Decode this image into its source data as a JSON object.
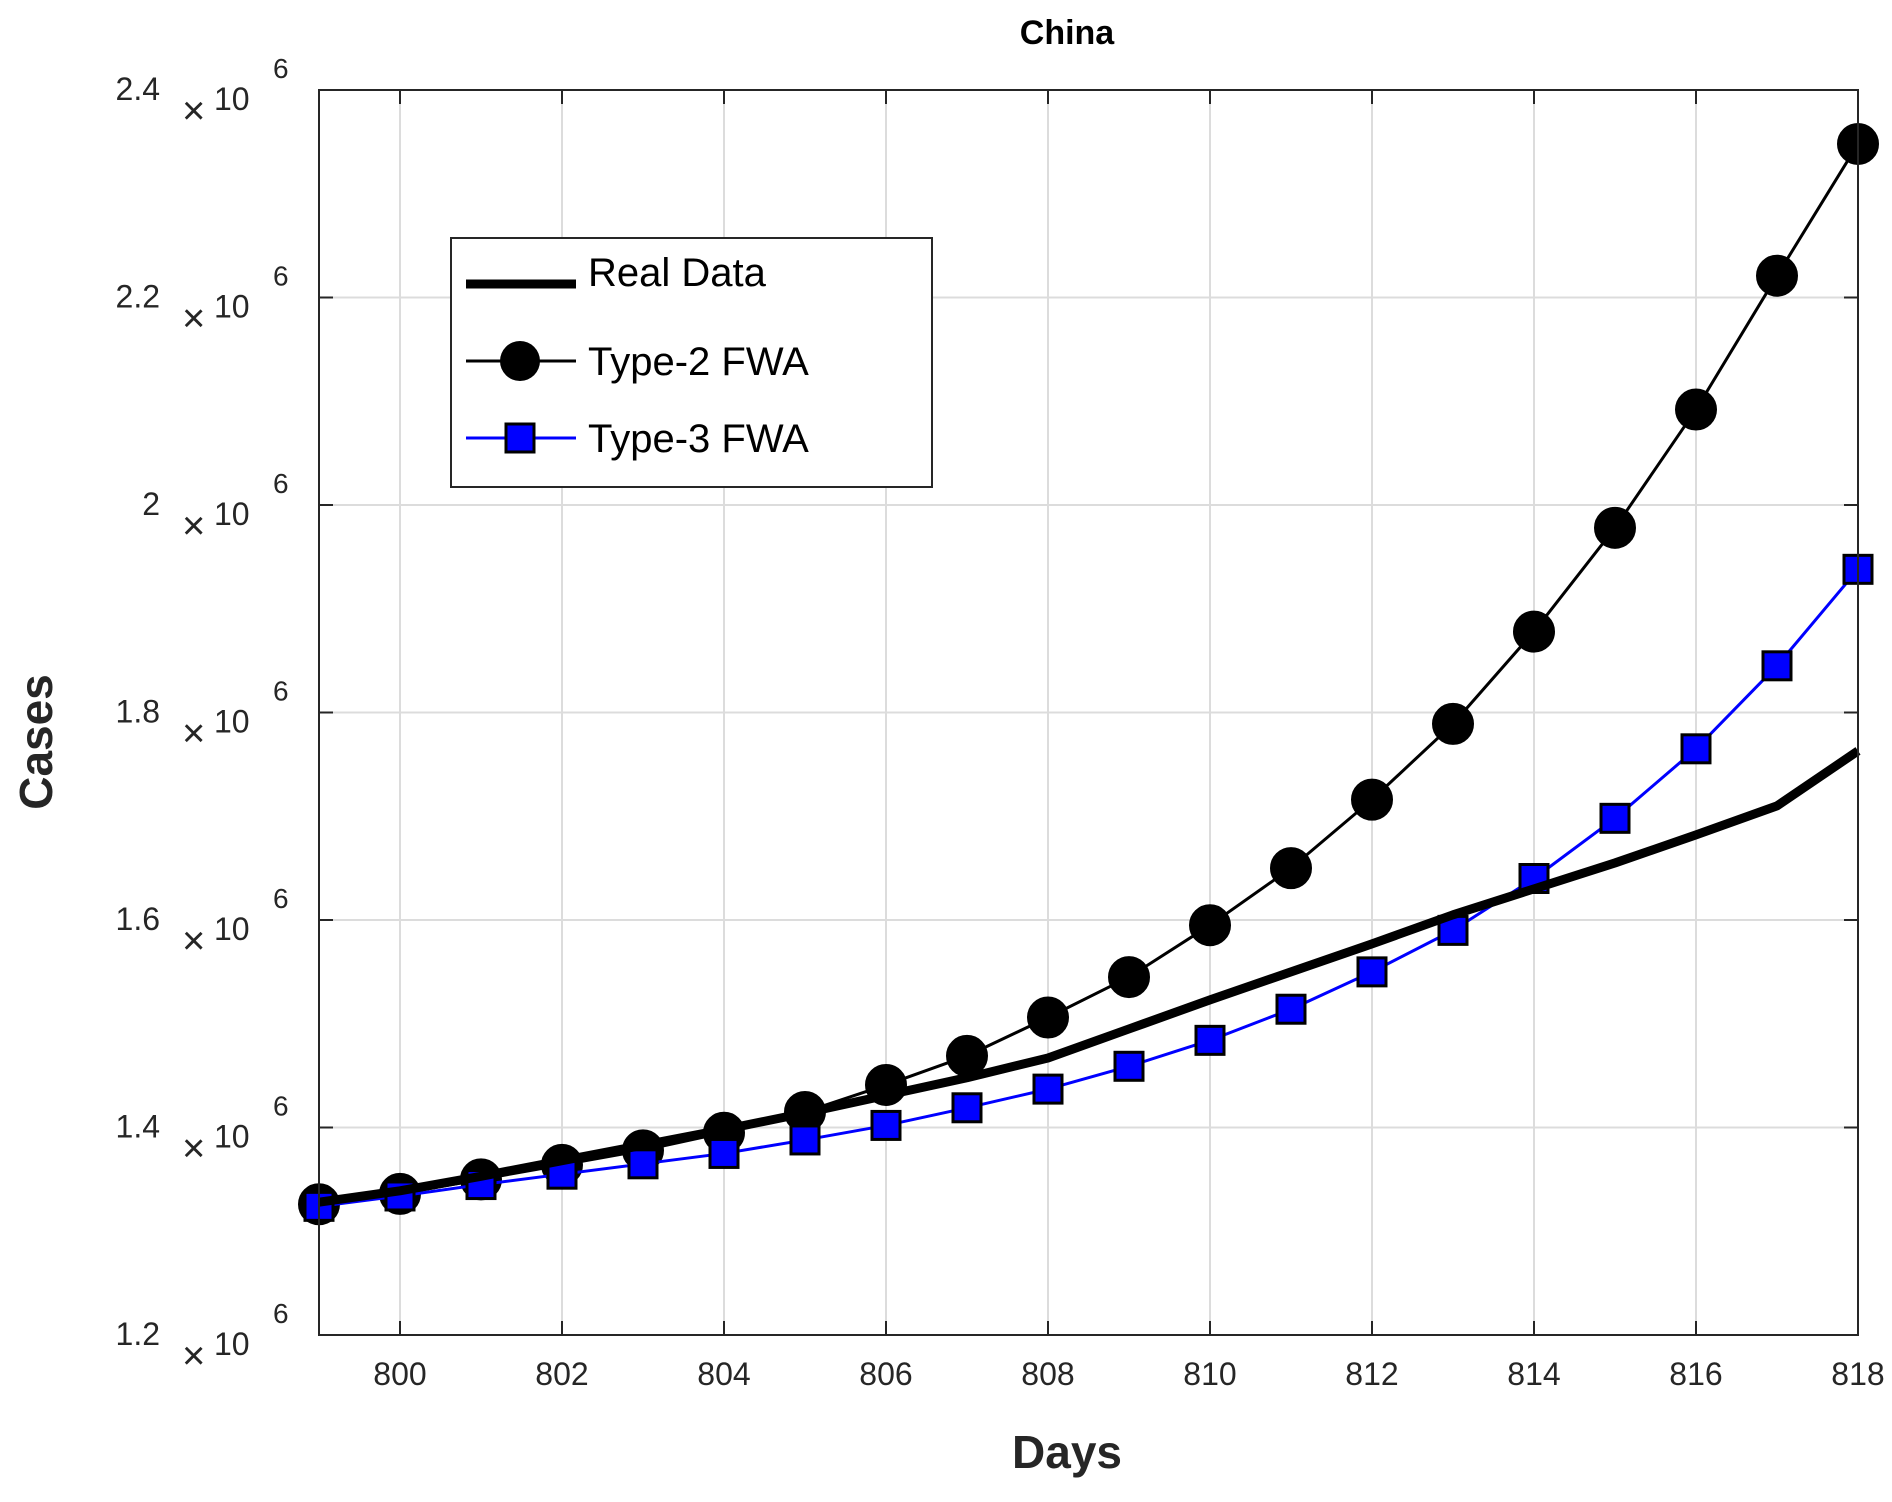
{
  "chart_data": {
    "type": "line",
    "title": "China",
    "xlabel": "Days",
    "ylabel": "Cases",
    "xlim": [
      799,
      818
    ],
    "ylim": [
      1200000,
      2400000
    ],
    "xticks": [
      "800",
      "802",
      "804",
      "806",
      "808",
      "810",
      "812",
      "814",
      "816",
      "818"
    ],
    "yticks": [
      {
        "value": 1200000,
        "mantissa": "1.2"
      },
      {
        "value": 1400000,
        "mantissa": "1.4"
      },
      {
        "value": 1600000,
        "mantissa": "1.6"
      },
      {
        "value": 1800000,
        "mantissa": "1.8"
      },
      {
        "value": 2000000,
        "mantissa": "2"
      },
      {
        "value": 2200000,
        "mantissa": "2.2"
      },
      {
        "value": 2400000,
        "mantissa": "2.4"
      }
    ],
    "ytick_multiplier": "×",
    "ytick_base": "10",
    "ytick_exponent": "6",
    "grid": true,
    "legend_position": "top-left",
    "x": [
      799,
      800,
      801,
      802,
      803,
      804,
      805,
      806,
      807,
      808,
      809,
      810,
      811,
      812,
      813,
      814,
      815,
      816,
      817,
      818
    ],
    "series": [
      {
        "name": "Real Data",
        "color": "#000000",
        "marker": "none",
        "values": [
          1328000,
          1339000,
          1353000,
          1368000,
          1383000,
          1398000,
          1414000,
          1431000,
          1448000,
          1467000,
          1495000,
          1523000,
          1550000,
          1577000,
          1605000,
          1630000,
          1655000,
          1682000,
          1710000,
          1763000
        ]
      },
      {
        "name": "Type-2 FWA",
        "color": "#000000",
        "marker": "circle",
        "values": [
          1326000,
          1336000,
          1350000,
          1364000,
          1378000,
          1395000,
          1415000,
          1441000,
          1469000,
          1506000,
          1545000,
          1595000,
          1650000,
          1716000,
          1789000,
          1878000,
          1978000,
          2092000,
          2221000,
          2348000
        ]
      },
      {
        "name": "Type-3 FWA",
        "color": "#0000ff",
        "marker": "square",
        "values": [
          1324000,
          1334000,
          1345000,
          1355000,
          1365000,
          1375000,
          1388000,
          1402000,
          1419000,
          1437000,
          1459000,
          1484000,
          1514000,
          1550000,
          1590000,
          1640000,
          1698000,
          1765000,
          1845000,
          1938000
        ]
      }
    ]
  }
}
